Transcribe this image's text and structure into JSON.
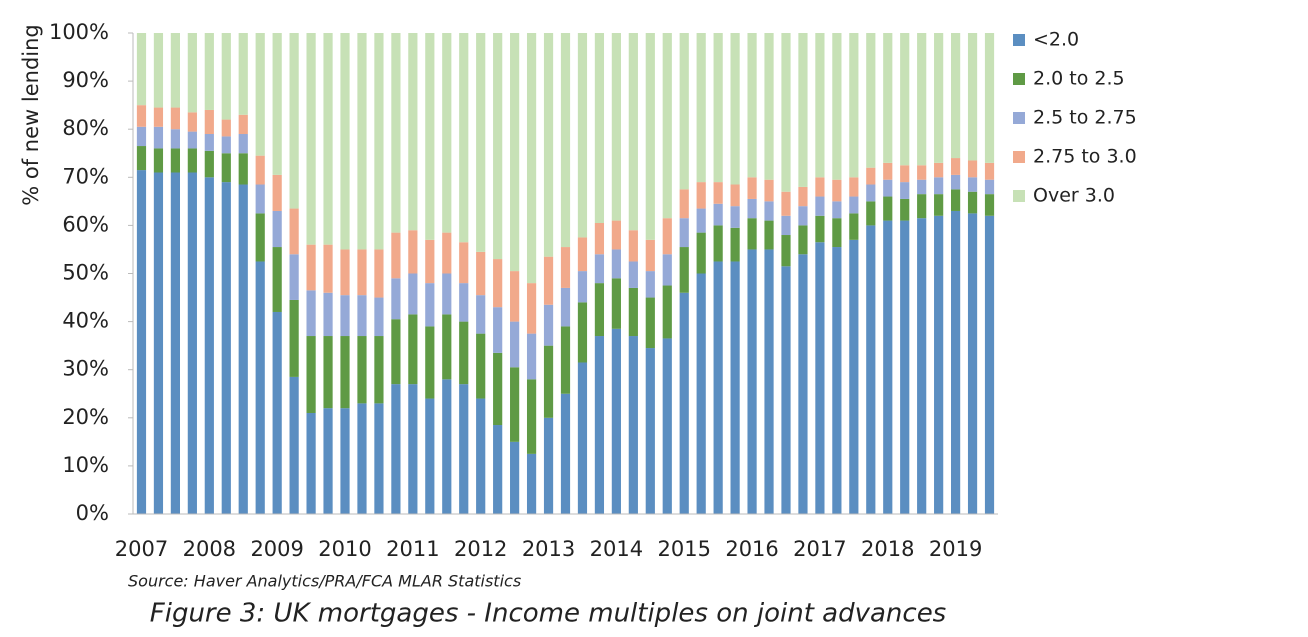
{
  "chart_data": {
    "type": "stacked_bar",
    "y_label": "% of new lending",
    "source": "Source: Haver Analytics/PRA/FCA MLAR Statistics",
    "caption": "Figure 3: UK mortgages - Income multiples on joint advances",
    "categories": [
      "2007",
      null,
      null,
      null,
      "2008",
      null,
      null,
      null,
      "2009",
      null,
      null,
      null,
      "2010",
      null,
      null,
      null,
      "2011",
      null,
      null,
      null,
      "2012",
      null,
      null,
      null,
      "2013",
      null,
      null,
      null,
      "2014",
      null,
      null,
      null,
      "2015",
      null,
      null,
      null,
      "2016",
      null,
      null,
      null,
      "2017",
      null,
      null,
      null,
      "2018",
      null,
      null,
      null,
      "2019",
      null,
      null
    ],
    "ylim": [
      0,
      100
    ],
    "yticks": [
      {
        "value": 0,
        "label": "0%"
      },
      {
        "value": 10,
        "label": "10%"
      },
      {
        "value": 20,
        "label": "20%"
      },
      {
        "value": 30,
        "label": "30%"
      },
      {
        "value": 40,
        "label": "40%"
      },
      {
        "value": 50,
        "label": "50%"
      },
      {
        "value": 60,
        "label": "60%"
      },
      {
        "value": 70,
        "label": "70%"
      },
      {
        "value": 80,
        "label": "80%"
      },
      {
        "value": 90,
        "label": "90%"
      },
      {
        "value": 100,
        "label": "100%"
      }
    ],
    "legend": "right",
    "series": [
      {
        "name": "<2.0",
        "color": "#5b8ec1",
        "values": [
          71.5,
          71,
          71,
          71,
          70,
          69,
          68.5,
          52.5,
          42,
          28.5,
          21,
          22,
          22,
          23,
          23,
          27,
          27,
          24,
          28,
          27,
          24,
          18.5,
          15,
          12.5,
          20,
          25,
          31.5,
          37,
          38.5,
          37,
          34.5,
          36.5,
          46,
          50,
          52.5,
          52.5,
          55,
          55,
          51.5,
          54,
          56.5,
          55.5,
          57,
          60,
          61,
          61,
          61.5,
          62,
          63,
          62.5,
          62
        ]
      },
      {
        "name": "2.0 to 2.5",
        "color": "#5f9a45",
        "values": [
          5,
          5,
          5,
          5,
          5.5,
          6,
          6.5,
          10,
          13.5,
          16,
          16,
          15,
          15,
          14,
          14,
          13.5,
          14.5,
          15,
          13.5,
          13,
          13.5,
          15,
          15.5,
          15.5,
          15,
          14,
          12.5,
          11,
          10.5,
          10,
          10.5,
          11,
          9.5,
          8.5,
          7.5,
          7,
          6.5,
          6,
          6.5,
          6,
          5.5,
          6,
          5.5,
          5,
          5,
          4.5,
          5,
          4.5,
          4.5,
          4.5,
          4.5
        ]
      },
      {
        "name": "2.5 to 2.75",
        "color": "#95a9d7",
        "values": [
          4,
          4.5,
          4,
          3.5,
          3.5,
          3.5,
          4,
          6,
          7.5,
          9.5,
          9.5,
          9,
          8.5,
          8.5,
          8,
          8.5,
          8.5,
          9,
          8.5,
          8,
          8,
          9.5,
          9.5,
          9.5,
          8.5,
          8,
          6.5,
          6,
          6,
          5.5,
          5.5,
          6.5,
          6,
          5,
          4.5,
          4.5,
          4,
          4,
          4,
          4,
          4,
          3.5,
          3.5,
          3.5,
          3.5,
          3.5,
          3,
          3.5,
          3,
          3,
          3
        ]
      },
      {
        "name": "2.75 to 3.0",
        "color": "#f1a98b",
        "values": [
          4.5,
          4,
          4.5,
          4,
          5,
          3.5,
          4,
          6,
          7.5,
          9.5,
          9.5,
          10,
          9.5,
          9.5,
          10,
          9.5,
          9,
          9,
          8.5,
          8.5,
          9,
          10,
          10.5,
          10.5,
          10,
          8.5,
          7,
          6.5,
          6,
          6.5,
          6.5,
          7.5,
          6,
          5.5,
          4.5,
          4.5,
          4.5,
          4.5,
          5,
          4,
          4,
          4.5,
          4,
          3.5,
          3.5,
          3.5,
          3,
          3,
          3.5,
          3.5,
          3.5
        ]
      },
      {
        "name": "Over 3.0",
        "color": "#c7e1b6",
        "values": [
          15,
          15.5,
          15.5,
          16.5,
          16,
          18,
          17,
          25.5,
          29.5,
          36.5,
          44,
          44,
          45,
          45,
          45,
          41.5,
          41,
          43,
          41.5,
          43.5,
          45.5,
          47,
          49.5,
          52,
          46.5,
          44.5,
          42.5,
          39.5,
          39,
          41,
          43,
          38.5,
          32.5,
          31,
          31,
          31.5,
          30,
          30.5,
          33,
          32,
          30,
          30.5,
          30,
          28,
          27,
          27.5,
          27.5,
          27,
          26,
          26.5,
          27
        ]
      }
    ]
  }
}
